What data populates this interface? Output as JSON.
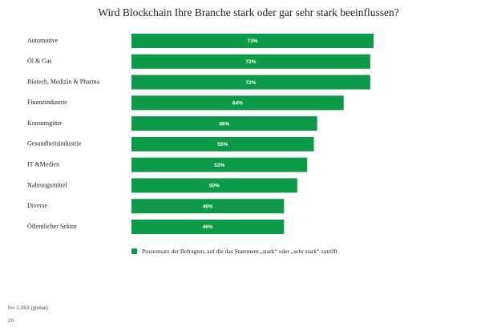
{
  "page": {
    "footnote": "N= 1.053 (global)",
    "page_number": "20"
  },
  "colors": {
    "bar": "#0d9a48"
  },
  "chart_data": {
    "type": "bar",
    "orientation": "horizontal",
    "title": "Wird Blockchain Ihre Branche stark oder gar sehr stark beeinflussen?",
    "categories": [
      "Automotive",
      "Öl & Gas",
      "Biotech, Medizin & Pharma",
      "Finanzindustrie",
      "Konsumgüter",
      "Gesundheitsindustrie",
      "IT &Medien",
      "Nahrungsmittel",
      "Diverse",
      "Öffentlicher Sektor"
    ],
    "series": [
      {
        "name": "Prozentsatz der Befragten, auf die das Statement „stark“ oder „sehr stark“ zutrifft",
        "values": [
          73,
          72,
          72,
          64,
          56,
          55,
          53,
          50,
          46,
          46
        ]
      }
    ],
    "data_labels": [
      "73%",
      "72%",
      "72%",
      "64%",
      "56%",
      "55%",
      "53%",
      "50%",
      "46%",
      "46%"
    ],
    "xlim": [
      0,
      100
    ],
    "legend_position": "bottom",
    "grid": false
  }
}
